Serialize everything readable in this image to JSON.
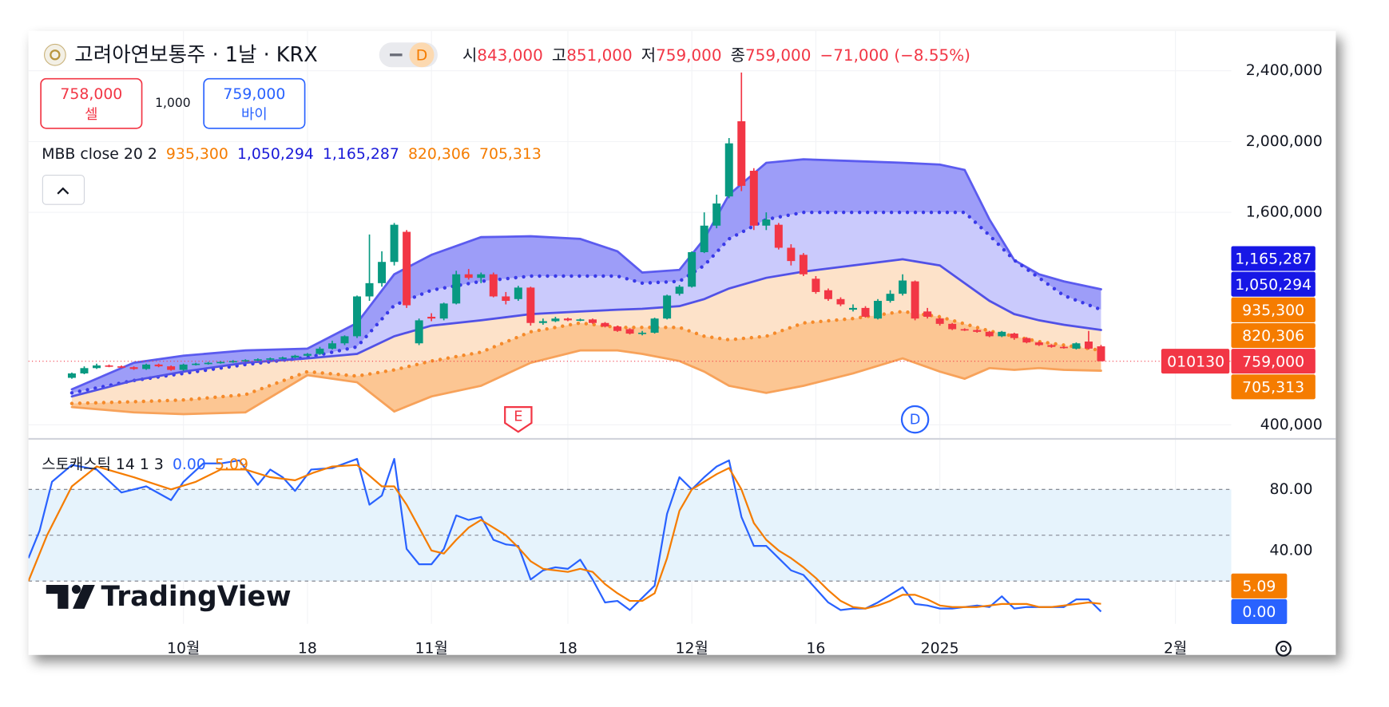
{
  "header": {
    "symbol": "고려아연보통주 · 1날 · KRX",
    "badge": "D",
    "ohlc": [
      {
        "key": "시",
        "value": "843,000"
      },
      {
        "key": "고",
        "value": "851,000"
      },
      {
        "key": "저",
        "value": "759,000"
      },
      {
        "key": "종",
        "value": "759,000"
      }
    ],
    "change": "−71,000 (−8.55%)"
  },
  "trade": {
    "sell_price": "758,000",
    "sell": "셀",
    "spread": "1,000",
    "buy_price": "759,000",
    "buy": "바이"
  },
  "logo": "TradingView",
  "chart_data": [
    {
      "type": "candlestick",
      "up_color": "#089981",
      "down_color": "#f23645",
      "open": [
        665000,
        690000,
        720000,
        735000,
        730000,
        725000,
        715000,
        740000,
        730000,
        710000,
        740000,
        745000,
        750000,
        755000,
        760000,
        765000,
        770000,
        775000,
        780000,
        790000,
        800000,
        830000,
        860000,
        900000,
        1125000,
        1200000,
        1320000,
        1490000,
        860000,
        1010000,
        1000000,
        1085000,
        1250000,
        1230000,
        1250000,
        1125000,
        1110000,
        1175000,
        975000,
        985000,
        1000000,
        990000,
        995000,
        975000,
        955000,
        940000,
        915000,
        920000,
        1000000,
        1140000,
        1180000,
        1375000,
        1525000,
        1690000,
        2115000,
        1835000,
        1525000,
        1530000,
        1400000,
        1360000,
        1225000,
        1160000,
        1110000,
        1050000,
        1060000,
        1000000,
        1100000,
        1140000,
        1210000,
        1040000,
        1000000,
        970000,
        940000,
        935000,
        925000,
        900000,
        915000,
        890000,
        865000,
        850000,
        840000,
        830000,
        870000,
        843000
      ],
      "high": [
        695000,
        730000,
        745000,
        740000,
        735000,
        730000,
        745000,
        745000,
        735000,
        745000,
        750000,
        755000,
        760000,
        765000,
        770000,
        775000,
        780000,
        785000,
        795000,
        805000,
        840000,
        875000,
        905000,
        1130000,
        1475000,
        1380000,
        1540000,
        1500000,
        1000000,
        1030000,
        1090000,
        1270000,
        1280000,
        1260000,
        1260000,
        1150000,
        1185000,
        1180000,
        1000000,
        1010000,
        1005000,
        1000000,
        1000000,
        980000,
        960000,
        945000,
        930000,
        1005000,
        1135000,
        1190000,
        1380000,
        1600000,
        1700000,
        2020000,
        2390000,
        1850000,
        1600000,
        1540000,
        1420000,
        1370000,
        1240000,
        1170000,
        1120000,
        1080000,
        1070000,
        1110000,
        1160000,
        1250000,
        1215000,
        1060000,
        1005000,
        975000,
        945000,
        940000,
        930000,
        930000,
        920000,
        895000,
        870000,
        855000,
        845000,
        865000,
        930000,
        851000
      ],
      "low": [
        660000,
        685000,
        715000,
        725000,
        720000,
        710000,
        710000,
        725000,
        705000,
        705000,
        735000,
        740000,
        745000,
        750000,
        755000,
        760000,
        765000,
        770000,
        775000,
        785000,
        795000,
        825000,
        850000,
        890000,
        1100000,
        1180000,
        1300000,
        1060000,
        850000,
        985000,
        990000,
        1080000,
        1220000,
        1200000,
        1120000,
        1080000,
        1100000,
        960000,
        965000,
        980000,
        985000,
        985000,
        970000,
        950000,
        925000,
        910000,
        905000,
        915000,
        995000,
        1130000,
        1175000,
        1370000,
        1510000,
        1680000,
        1720000,
        1500000,
        1500000,
        1390000,
        1300000,
        1240000,
        1140000,
        1100000,
        1070000,
        1040000,
        1005000,
        995000,
        1090000,
        1130000,
        990000,
        1000000,
        960000,
        935000,
        930000,
        920000,
        895000,
        895000,
        880000,
        860000,
        845000,
        835000,
        830000,
        825000,
        825000,
        759000
      ],
      "close": [
        690000,
        720000,
        735000,
        730000,
        725000,
        715000,
        740000,
        730000,
        710000,
        740000,
        745000,
        750000,
        755000,
        760000,
        765000,
        770000,
        775000,
        780000,
        790000,
        800000,
        830000,
        860000,
        900000,
        1125000,
        1200000,
        1320000,
        1530000,
        1075000,
        990000,
        1000000,
        1085000,
        1250000,
        1230000,
        1250000,
        1125000,
        1100000,
        1175000,
        975000,
        985000,
        1000000,
        990000,
        995000,
        975000,
        955000,
        930000,
        915000,
        920000,
        1000000,
        1130000,
        1180000,
        1375000,
        1525000,
        1650000,
        1990000,
        1750000,
        1525000,
        1560000,
        1400000,
        1325000,
        1250000,
        1150000,
        1110000,
        1080000,
        1060000,
        1010000,
        1100000,
        1140000,
        1215000,
        1000000,
        1010000,
        970000,
        940000,
        935000,
        925000,
        900000,
        925000,
        890000,
        865000,
        850000,
        840000,
        835000,
        860000,
        830000,
        759000
      ],
      "xlim": [
        -3.5,
        93.5
      ],
      "xticks": [
        {
          "value": 9,
          "label": "10월"
        },
        {
          "value": 19,
          "label": "18"
        },
        {
          "value": 29,
          "label": "11월"
        },
        {
          "value": 40,
          "label": "18"
        },
        {
          "value": 50,
          "label": "12월"
        },
        {
          "value": 60,
          "label": "16"
        },
        {
          "value": 70,
          "label": "2025"
        },
        {
          "value": 89,
          "label": "2월"
        }
      ],
      "ylim": [
        325000,
        2625000
      ],
      "yticks": [
        {
          "value": 400000,
          "label": "400,000"
        },
        {
          "value": 1600000,
          "label": "1,600,000"
        },
        {
          "value": 2000000,
          "label": "2,000,000"
        },
        {
          "value": 2400000,
          "label": "2,400,000"
        }
      ],
      "indicator": {
        "title": "MBB close 20 2",
        "legend": [
          {
            "label": "935,300",
            "color": "#f57c00"
          },
          {
            "label": "1,050,294",
            "color": "#1a1ad8"
          },
          {
            "label": "1,165,287",
            "color": "#1a1ad8"
          },
          {
            "label": "820,306",
            "color": "#f57c00"
          },
          {
            "label": "705,313",
            "color": "#f57c00"
          }
        ],
        "x": [
          0,
          5,
          9,
          14,
          19,
          23,
          26,
          29,
          33,
          37,
          41,
          44,
          46,
          49,
          51,
          53,
          56,
          59,
          63,
          67,
          70,
          72,
          74,
          76,
          78,
          80,
          83
        ],
        "series": [
          {
            "color": "#5b5bef",
            "style": "solid",
            "fill": "#9d9df8",
            "values": [
              600000,
              750000,
              790000,
              820000,
              830000,
              975000,
              1250000,
              1360000,
              1460000,
              1465000,
              1450000,
              1380000,
              1260000,
              1275000,
              1450000,
              1700000,
              1880000,
              1900000,
              1890000,
              1880000,
              1870000,
              1840000,
              1560000,
              1330000,
              1250000,
              1210000,
              1165287
            ]
          },
          {
            "color": "#3a3ae8",
            "style": "dotted",
            "fill": "#cacafc",
            "values": [
              580000,
              650000,
              690000,
              740000,
              780000,
              840000,
              1075000,
              1160000,
              1210000,
              1240000,
              1240000,
              1240000,
              1200000,
              1210000,
              1300000,
              1450000,
              1560000,
              1600000,
              1600000,
              1600000,
              1600000,
              1600000,
              1470000,
              1330000,
              1230000,
              1130000,
              1050294
            ]
          },
          {
            "color": "#5151e6",
            "style": "solid",
            "fill": "#fde2c9",
            "values": [
              560000,
              650000,
              700000,
              750000,
              775000,
              800000,
              900000,
              960000,
              990000,
              1025000,
              1040000,
              1050000,
              1055000,
              1070000,
              1110000,
              1170000,
              1230000,
              1265000,
              1300000,
              1335000,
              1300000,
              1200000,
              1100000,
              1025000,
              990000,
              965000,
              935300
            ]
          },
          {
            "color": "#f58a2a",
            "style": "dotted",
            "fill": "#fcc693",
            "values": [
              520000,
              530000,
              540000,
              570000,
              700000,
              675000,
              710000,
              760000,
              810000,
              925000,
              975000,
              950000,
              950000,
              950000,
              900000,
              880000,
              900000,
              975000,
              1000000,
              1040000,
              1010000,
              970000,
              930000,
              900000,
              870000,
              850000,
              820306
            ]
          },
          {
            "color": "#f7a25a",
            "style": "solid",
            "values": [
              500000,
              470000,
              460000,
              470000,
              680000,
              640000,
              475000,
              560000,
              620000,
              750000,
              820000,
              820000,
              800000,
              760000,
              700000,
              620000,
              580000,
              620000,
              690000,
              775000,
              700000,
              660000,
              720000,
              710000,
              720000,
              710000,
              705313
            ]
          }
        ]
      },
      "price_tags": [
        {
          "value": 1165287,
          "label": "1,165,287",
          "color": "#1717e6"
        },
        {
          "value": 1050294,
          "label": "1,050,294",
          "color": "#1717e6"
        },
        {
          "value": 935300,
          "label": "935,300",
          "color": "#f57c00"
        },
        {
          "value": 820306,
          "label": "820,306",
          "color": "#f57c00"
        },
        {
          "value": 759000,
          "label": "759,000",
          "color": "#f23645"
        },
        {
          "value": 705313,
          "label": "705,313",
          "color": "#f57c00"
        }
      ],
      "symbol_tag": "010130",
      "events": [
        {
          "x": 36,
          "label": "E",
          "color": "#f23645"
        },
        {
          "x": 68,
          "label": "D",
          "color": "#2962ff"
        }
      ]
    },
    {
      "type": "line",
      "title": "스토캐스틱 14 1 3",
      "legend": [
        {
          "label": "0.00",
          "color": "#2962ff"
        },
        {
          "label": "5.09",
          "color": "#f57c00"
        }
      ],
      "ylim": [
        -8,
        112.5
      ],
      "yticks": [
        {
          "value": 40,
          "label": "40.00"
        },
        {
          "value": 80,
          "label": "80.00"
        }
      ],
      "bands": [
        80,
        50,
        20
      ],
      "band_fill": "#e6f3fc",
      "series": [
        {
          "color": "#2962ff",
          "x": [
            -3.5,
            -2.6,
            -1.6,
            0,
            2,
            4,
            6,
            8,
            9,
            10.6,
            12,
            13.5,
            15,
            16,
            17,
            18,
            19.3,
            21,
            23,
            24,
            25,
            26,
            27,
            28,
            29,
            30,
            31,
            32,
            33,
            34,
            35,
            36,
            37,
            38,
            39,
            40,
            41,
            42,
            43,
            44,
            45,
            46,
            47,
            48,
            49,
            50,
            51,
            52,
            53,
            54,
            55,
            56,
            57,
            58,
            59,
            60,
            61,
            62,
            63,
            64,
            65,
            66,
            67,
            68,
            69,
            70,
            71,
            72,
            73,
            74,
            75,
            76,
            77,
            78,
            79,
            80,
            81,
            82,
            83
          ],
          "values": [
            35,
            53,
            85,
            96,
            93,
            78,
            82,
            73,
            85,
            97,
            97,
            99,
            83,
            93,
            88,
            79,
            93,
            94,
            100,
            70,
            76,
            100,
            41,
            31,
            31,
            41,
            63,
            60,
            62,
            47,
            44,
            43,
            21,
            27,
            29,
            28,
            34,
            21,
            6,
            7,
            1,
            9,
            17,
            64,
            88,
            80,
            88,
            95,
            99,
            62,
            43,
            43,
            35,
            27,
            24,
            15,
            6,
            1,
            2,
            2,
            6,
            11,
            16,
            5,
            4,
            2,
            2,
            3,
            4,
            3,
            10,
            2,
            3,
            3,
            3,
            3,
            8,
            8,
            0
          ]
        },
        {
          "color": "#f57c00",
          "x": [
            -3.5,
            -2,
            0,
            2,
            5,
            8,
            10,
            12,
            14,
            16,
            18,
            19.5,
            21,
            23,
            25,
            26,
            27,
            28,
            29,
            30,
            31,
            32,
            33,
            34,
            35,
            36,
            37,
            38,
            40,
            41,
            42,
            43,
            44,
            45,
            46,
            47,
            48,
            49,
            50,
            51,
            52,
            53,
            54,
            55,
            56,
            57,
            58,
            59,
            60,
            61,
            62,
            63,
            64,
            65,
            66,
            67,
            68,
            69,
            70,
            71,
            72,
            73,
            74,
            75,
            76,
            77,
            78,
            79,
            80,
            81,
            82,
            83
          ],
          "values": [
            20,
            50,
            82,
            95,
            88,
            80,
            85,
            93,
            93,
            88,
            86,
            91,
            95,
            96,
            82,
            82,
            70,
            55,
            40,
            38,
            47,
            55,
            60,
            55,
            50,
            42,
            33,
            28,
            26,
            28,
            26,
            18,
            12,
            7,
            7,
            12,
            35,
            66,
            80,
            85,
            90,
            94,
            80,
            58,
            47,
            40,
            35,
            29,
            22,
            14,
            7,
            3,
            2,
            4,
            7,
            11,
            11,
            8,
            4,
            3,
            3,
            3,
            4,
            5,
            5,
            5,
            3,
            3,
            4,
            5,
            6,
            5.09
          ]
        }
      ],
      "price_tags": [
        {
          "value": 5.09,
          "label": "5.09",
          "color": "#f57c00"
        },
        {
          "value": 0,
          "label": "0.00",
          "color": "#2962ff"
        }
      ]
    }
  ]
}
